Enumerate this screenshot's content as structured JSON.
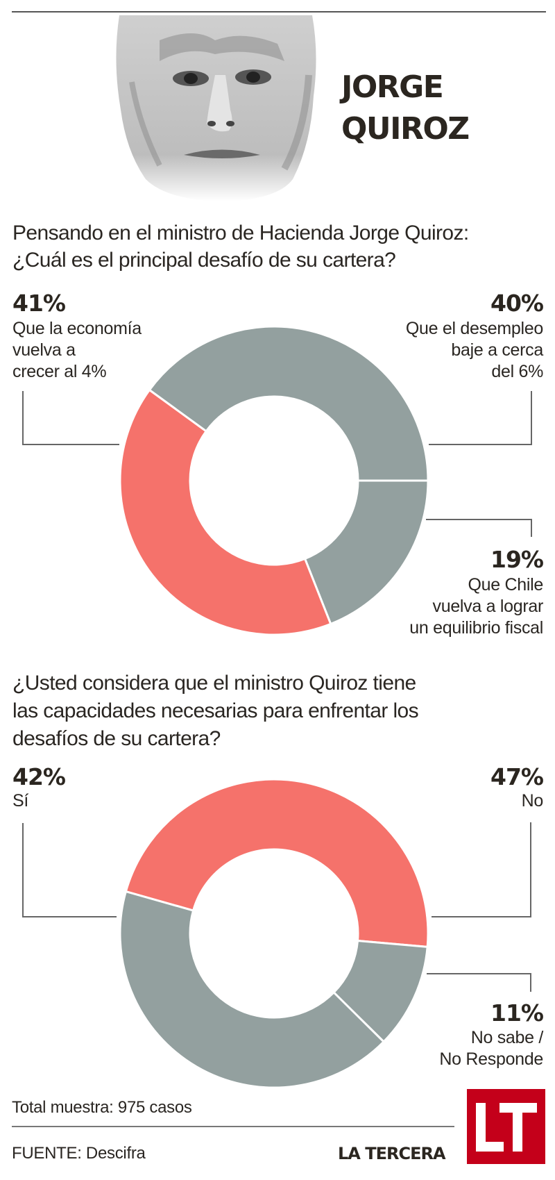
{
  "header": {
    "name_line1": "JORGE",
    "name_line2": "QUIROZ",
    "portrait_icon": "portrait-illustration"
  },
  "colors": {
    "accent_red": "#f5726b",
    "neutral_gray": "#93a09f",
    "logo_red": "#c4001a",
    "text_dark": "#2b2620"
  },
  "chart_data": [
    {
      "type": "pie",
      "variant": "donut",
      "title": "Pensando en el ministro de Hacienda Jorge Quiroz: ¿Cuál es el principal desafío de su cartera?",
      "title_lines": [
        "Pensando en el ministro de Hacienda Jorge Quiroz:",
        "¿Cuál es el principal desafío de su cartera?"
      ],
      "slices": [
        {
          "label": "Que el desempleo baje a cerca del 6%",
          "label_lines": [
            "Que el desempleo",
            "baje a cerca",
            "del 6%"
          ],
          "value": 40,
          "value_label": "40%",
          "color": "#93a09f",
          "label_position": "top-right"
        },
        {
          "label": "Que Chile vuelva a lograr un equilibrio fiscal",
          "label_lines": [
            "Que Chile",
            "vuelva a lograr",
            "un equilibrio fiscal"
          ],
          "value": 19,
          "value_label": "19%",
          "color": "#93a09f",
          "label_position": "bottom-right"
        },
        {
          "label": "Que la economía vuelva a crecer al 4%",
          "label_lines": [
            "Que la economía",
            "vuelva a",
            "crecer al 4%"
          ],
          "value": 41,
          "value_label": "41%",
          "color": "#f5726b",
          "label_position": "top-left"
        }
      ],
      "start_angle_deg": -54
    },
    {
      "type": "pie",
      "variant": "donut",
      "title": "¿Usted considera que el ministro Quiroz tiene las capacidades necesarias para enfrentar los desafíos de su cartera?",
      "title_lines": [
        "¿Usted considera que el ministro Quiroz tiene",
        "las capacidades necesarias para enfrentar los",
        "desafíos de su cartera?"
      ],
      "slices": [
        {
          "label": "No",
          "label_lines": [
            "No"
          ],
          "value": 47,
          "value_label": "47%",
          "color": "#f5726b",
          "label_position": "top-right"
        },
        {
          "label": "No sabe / No Responde",
          "label_lines": [
            "No sabe /",
            "No Responde"
          ],
          "value": 11,
          "value_label": "11%",
          "color": "#93a09f",
          "label_position": "bottom-right"
        },
        {
          "label": "Sí",
          "label_lines": [
            "Sí"
          ],
          "value": 42,
          "value_label": "42%",
          "color": "#93a09f",
          "label_position": "top-left"
        }
      ],
      "start_angle_deg": -74.2
    }
  ],
  "footer": {
    "sample": "Total muestra: 975 casos",
    "source": "FUENTE: Descifra",
    "brand": "LA TERCERA",
    "logo_text": "LT"
  }
}
